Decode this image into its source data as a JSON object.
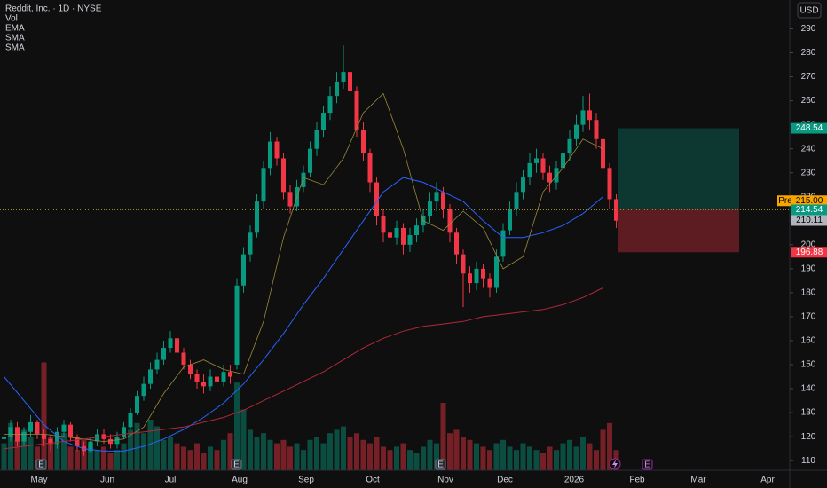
{
  "header": {
    "symbol": "Reddit, Inc. · 1D · NYSE",
    "currency": "USD",
    "events": [
      "E",
      "E",
      "E",
      "E"
    ]
  },
  "chart_data": {
    "type": "candlestick",
    "volume_name": "Vol",
    "candles": [
      [
        119,
        123,
        117,
        120
      ],
      [
        120,
        127,
        118,
        124
      ],
      [
        124,
        126,
        116,
        118
      ],
      [
        118,
        124,
        116,
        122
      ],
      [
        122,
        129,
        120,
        126
      ],
      [
        126,
        127,
        119,
        121
      ],
      [
        121,
        123,
        116,
        119
      ],
      [
        119,
        121,
        114,
        117
      ],
      [
        117,
        124,
        115,
        122
      ],
      [
        122,
        127,
        120,
        125
      ],
      [
        125,
        126,
        118,
        120
      ],
      [
        120,
        121,
        114,
        116
      ],
      [
        116,
        118,
        112,
        114
      ],
      [
        114,
        120,
        113,
        118
      ],
      [
        118,
        123,
        116,
        121
      ],
      [
        121,
        123,
        117,
        119
      ],
      [
        119,
        121,
        115,
        117
      ],
      [
        117,
        122,
        115,
        120
      ],
      [
        120,
        126,
        119,
        124
      ],
      [
        124,
        132,
        123,
        130
      ],
      [
        130,
        139,
        129,
        137
      ],
      [
        137,
        145,
        135,
        142
      ],
      [
        142,
        151,
        140,
        148
      ],
      [
        148,
        155,
        146,
        152
      ],
      [
        152,
        160,
        150,
        157
      ],
      [
        157,
        164,
        155,
        161
      ],
      [
        161,
        162,
        153,
        155
      ],
      [
        155,
        157,
        148,
        150
      ],
      [
        150,
        152,
        144,
        146
      ],
      [
        146,
        148,
        140,
        143
      ],
      [
        143,
        146,
        138,
        141
      ],
      [
        141,
        148,
        139,
        145
      ],
      [
        145,
        147,
        140,
        143
      ],
      [
        143,
        150,
        141,
        147
      ],
      [
        147,
        150,
        142,
        145
      ],
      [
        150,
        186,
        148,
        183
      ],
      [
        183,
        199,
        180,
        196
      ],
      [
        196,
        208,
        193,
        205
      ],
      [
        205,
        221,
        203,
        218
      ],
      [
        218,
        235,
        215,
        232
      ],
      [
        232,
        247,
        229,
        243
      ],
      [
        243,
        245,
        233,
        236
      ],
      [
        236,
        238,
        219,
        222
      ],
      [
        222,
        225,
        213,
        216
      ],
      [
        216,
        227,
        214,
        224
      ],
      [
        224,
        233,
        222,
        230
      ],
      [
        230,
        243,
        228,
        240
      ],
      [
        240,
        251,
        237,
        248
      ],
      [
        248,
        258,
        245,
        255
      ],
      [
        255,
        266,
        252,
        262
      ],
      [
        262,
        272,
        259,
        268
      ],
      [
        268,
        283,
        265,
        272
      ],
      [
        272,
        275,
        260,
        264
      ],
      [
        264,
        266,
        245,
        248
      ],
      [
        248,
        251,
        235,
        238
      ],
      [
        238,
        240,
        222,
        226
      ],
      [
        226,
        228,
        208,
        212
      ],
      [
        212,
        215,
        201,
        205
      ],
      [
        205,
        208,
        199,
        203
      ],
      [
        203,
        210,
        200,
        207
      ],
      [
        207,
        209,
        196,
        200
      ],
      [
        200,
        207,
        197,
        204
      ],
      [
        204,
        211,
        201,
        208
      ],
      [
        208,
        215,
        205,
        212
      ],
      [
        212,
        222,
        209,
        218
      ],
      [
        218,
        226,
        214,
        222
      ],
      [
        222,
        224,
        211,
        215
      ],
      [
        215,
        217,
        201,
        205
      ],
      [
        205,
        207,
        192,
        196
      ],
      [
        196,
        198,
        174,
        188
      ],
      [
        188,
        191,
        180,
        184
      ],
      [
        184,
        193,
        181,
        190
      ],
      [
        190,
        192,
        182,
        186
      ],
      [
        186,
        188,
        178,
        182
      ],
      [
        182,
        198,
        180,
        195
      ],
      [
        195,
        209,
        193,
        206
      ],
      [
        206,
        218,
        204,
        215
      ],
      [
        215,
        226,
        212,
        222
      ],
      [
        222,
        231,
        219,
        228
      ],
      [
        228,
        238,
        225,
        234
      ],
      [
        234,
        240,
        230,
        236
      ],
      [
        236,
        238,
        227,
        230
      ],
      [
        230,
        233,
        222,
        226
      ],
      [
        226,
        235,
        223,
        232
      ],
      [
        232,
        241,
        229,
        238
      ],
      [
        238,
        248,
        235,
        244
      ],
      [
        244,
        254,
        241,
        250
      ],
      [
        250,
        262,
        247,
        256
      ],
      [
        256,
        263,
        248,
        252
      ],
      [
        252,
        255,
        240,
        244
      ],
      [
        244,
        246,
        228,
        232
      ],
      [
        232,
        234,
        215,
        219
      ],
      [
        219,
        221,
        207,
        210
      ]
    ],
    "volume": [
      8,
      14,
      9,
      12,
      10,
      7,
      32,
      10,
      8,
      11,
      7,
      6,
      9,
      8,
      6,
      7,
      5,
      6,
      8,
      12,
      14,
      11,
      15,
      13,
      9,
      10,
      8,
      7,
      6,
      8,
      5,
      7,
      6,
      9,
      11,
      26,
      18,
      12,
      10,
      11,
      9,
      8,
      9,
      7,
      8,
      6,
      9,
      10,
      8,
      11,
      12,
      13,
      10,
      11,
      9,
      8,
      10,
      7,
      6,
      7,
      8,
      6,
      5,
      7,
      9,
      8,
      20,
      11,
      12,
      10,
      9,
      8,
      7,
      6,
      8,
      9,
      7,
      6,
      8,
      7,
      6,
      5,
      7,
      6,
      8,
      9,
      7,
      10,
      8,
      6,
      12,
      14,
      6
    ],
    "series": [
      {
        "name": "EMA",
        "color": "#9a8a3a",
        "values": [
          121,
          121,
          121,
          120,
          119,
          118,
          119,
          124,
          138,
          149,
          152,
          148,
          146,
          168,
          203,
          228,
          225,
          236,
          255,
          263,
          240,
          210,
          206,
          214,
          207,
          190,
          195,
          222,
          232,
          244,
          240
        ]
      },
      {
        "name": "SMA",
        "color": "#2962ff",
        "values": [
          145,
          135,
          125,
          118,
          115,
          114,
          114,
          116,
          119,
          123,
          128,
          134,
          142,
          152,
          163,
          175,
          186,
          198,
          210,
          222,
          228,
          226,
          222,
          218,
          210,
          203,
          203,
          205,
          208,
          213,
          220
        ]
      },
      {
        "name": "SMA",
        "color": "#b2283a",
        "values": [
          115,
          116,
          117,
          118,
          119,
          120,
          121,
          122,
          123,
          124,
          126,
          128,
          131,
          135,
          139,
          143,
          147,
          152,
          157,
          161,
          164,
          166,
          167,
          168,
          170,
          171,
          172,
          173,
          175,
          178,
          182
        ]
      }
    ],
    "ylim": [
      106,
      302
    ],
    "yticks": [
      110,
      120,
      130,
      140,
      150,
      160,
      170,
      180,
      190,
      200,
      210,
      220,
      230,
      240,
      250,
      260,
      270,
      280,
      290
    ],
    "xticks": [
      "May",
      "Jun",
      "Jul",
      "Aug",
      "Sep",
      "Oct",
      "Nov",
      "Dec",
      "2026",
      "Feb",
      "Mar",
      "Apr"
    ],
    "position": {
      "target": 248.54,
      "entry": {
        "value": 215,
        "label": "215.00"
      },
      "stop": 196.88
    },
    "pre_label": "Pre",
    "last_price": 214.54,
    "prev_close": 210.11,
    "up_color": "#089981",
    "down_color": "#f23645"
  }
}
